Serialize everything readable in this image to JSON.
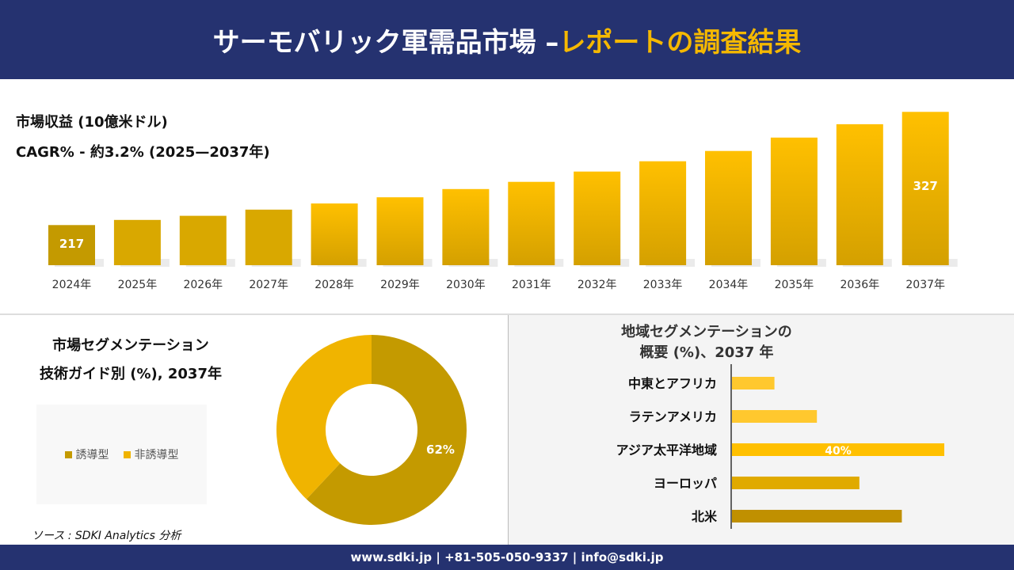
{
  "header": {
    "title_main": "サーモバリック軍需品市場 –",
    "title_accent": "レポートの調査結果"
  },
  "colors": {
    "navy": "#253270",
    "gold_dark": "#c49a00",
    "gold": "#f5b800",
    "gold_light": "#ffc82e"
  },
  "chart_data": [
    {
      "type": "bar",
      "title": "市場収益 (10億米ドル)",
      "subtitle": "CAGR% - 約3.2% (2025—2037年)",
      "categories": [
        "2024年",
        "2025年",
        "2026年",
        "2027年",
        "2028年",
        "2029年",
        "2030年",
        "2031年",
        "2032年",
        "2033年",
        "2034年",
        "2035年",
        "2036年",
        "2037年"
      ],
      "values": [
        217,
        222,
        226,
        232,
        238,
        244,
        252,
        259,
        269,
        279,
        289,
        302,
        315,
        327
      ],
      "data_labels": {
        "0": "217",
        "13": "327"
      }
    },
    {
      "type": "pie",
      "title_line1": "市場セグメンテーション",
      "title_line2": "技術ガイド別 (%), 2037年",
      "slices": [
        {
          "name": "誘導型",
          "value": 62,
          "label": "62%",
          "color": "#c49a00"
        },
        {
          "name": "非誘導型",
          "value": 38,
          "color": "#f0b400"
        }
      ]
    },
    {
      "type": "bar",
      "orientation": "horizontal",
      "title_line1": "地域セグメンテーションの",
      "title_line2": "概要 (%)、2037 年",
      "categories": [
        "中東とアフリカ",
        "ラテンアメリカ",
        "アジア太平洋地域",
        "ヨーロッパ",
        "北米"
      ],
      "values": [
        8,
        16,
        40,
        24,
        32
      ],
      "colors": [
        "#ffc82e",
        "#ffc82e",
        "#ffc000",
        "#e0aa00",
        "#c09000"
      ],
      "data_labels": {
        "2": "40%"
      }
    }
  ],
  "source": "ソース : SDKI Analytics 分析",
  "footer": "www.sdki.jp | +81-505-050-9337 | info@sdki.jp"
}
